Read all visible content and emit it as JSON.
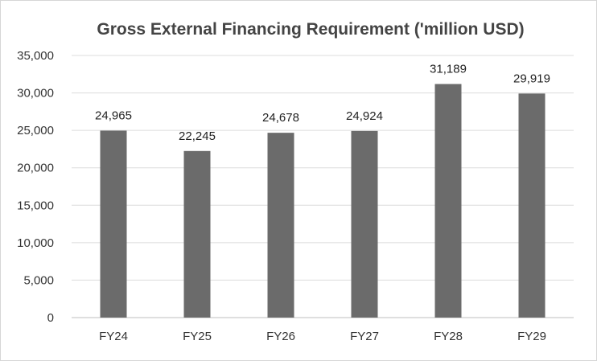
{
  "chart_data": {
    "type": "bar",
    "title": "Gross External Financing Requirement ('million USD)",
    "categories": [
      "FY24",
      "FY25",
      "FY26",
      "FY27",
      "FY28",
      "FY29"
    ],
    "values": [
      24965,
      22245,
      24678,
      24924,
      31189,
      29919
    ],
    "data_labels": [
      "24,965",
      "22,245",
      "24,678",
      "24,924",
      "31,189",
      "29,919"
    ],
    "y_ticks": [
      "0",
      "5,000",
      "10,000",
      "15,000",
      "20,000",
      "25,000",
      "30,000",
      "35,000"
    ],
    "ylim": [
      0,
      35000
    ],
    "y_step": 5000,
    "xlabel": "",
    "ylabel": "",
    "grid": true,
    "legend": "none",
    "colors": {
      "bar": "#6b6b6b",
      "grid": "#dcdcdc",
      "axis": "#bfbfbf"
    }
  }
}
